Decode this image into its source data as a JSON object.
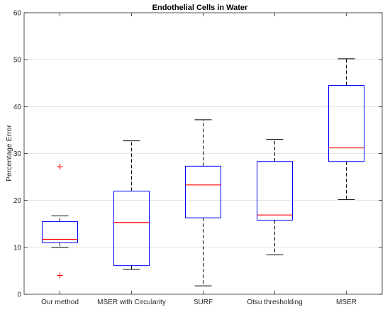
{
  "chart_data": {
    "type": "box",
    "title": "Endothelial Cells in Water",
    "xlabel": "",
    "ylabel": "Percentage Error",
    "ylim": [
      0,
      60
    ],
    "yticks": [
      0,
      10,
      20,
      30,
      40,
      50,
      60
    ],
    "grid": "horizontal",
    "categories": [
      "Our method",
      "MSER with Circularity",
      "SURF",
      "Otsu thresholding",
      "MSER"
    ],
    "boxes": [
      {
        "whisker_low": 10.0,
        "q1": 11.0,
        "median": 11.7,
        "q3": 15.5,
        "whisker_high": 16.7,
        "outliers": [
          27.2,
          4.0
        ]
      },
      {
        "whisker_low": 5.3,
        "q1": 6.1,
        "median": 15.3,
        "q3": 22.0,
        "whisker_high": 32.7,
        "outliers": []
      },
      {
        "whisker_low": 1.8,
        "q1": 16.3,
        "median": 23.3,
        "q3": 27.3,
        "whisker_high": 37.2,
        "outliers": []
      },
      {
        "whisker_low": 8.4,
        "q1": 15.8,
        "median": 16.9,
        "q3": 28.3,
        "whisker_high": 33.0,
        "outliers": []
      },
      {
        "whisker_low": 20.2,
        "q1": 28.3,
        "median": 31.2,
        "q3": 44.5,
        "whisker_high": 50.2,
        "outliers": []
      }
    ],
    "colors": {
      "box": "#0000ff",
      "median": "#ff0000",
      "whisker": "#000000",
      "outlier": "#ff0000",
      "grid": "#dedede",
      "axis": "#262626"
    }
  }
}
